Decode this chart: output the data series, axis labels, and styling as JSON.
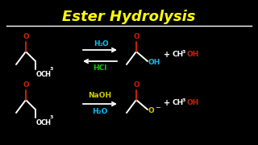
{
  "title": "Ester Hydrolysis",
  "title_color": "#FFFF00",
  "title_fontsize": 13,
  "bg_color": "#000000",
  "separator_color": "#FFFFFF",
  "reaction1_above": "H₂O",
  "reaction1_below": "HCl",
  "reaction1_above_color": "#00BFFF",
  "reaction1_below_color": "#00CC00",
  "reaction2_above": "NaOH",
  "reaction2_below": "H₂O",
  "reaction2_above_color": "#CCCC00",
  "reaction2_below_color": "#00BFFF",
  "arrow_color": "#FFFFFF",
  "red": "#CC2200",
  "white": "#FFFFFF",
  "cyan": "#00BFFF",
  "yellow": "#CCCC00",
  "green": "#00CC00"
}
